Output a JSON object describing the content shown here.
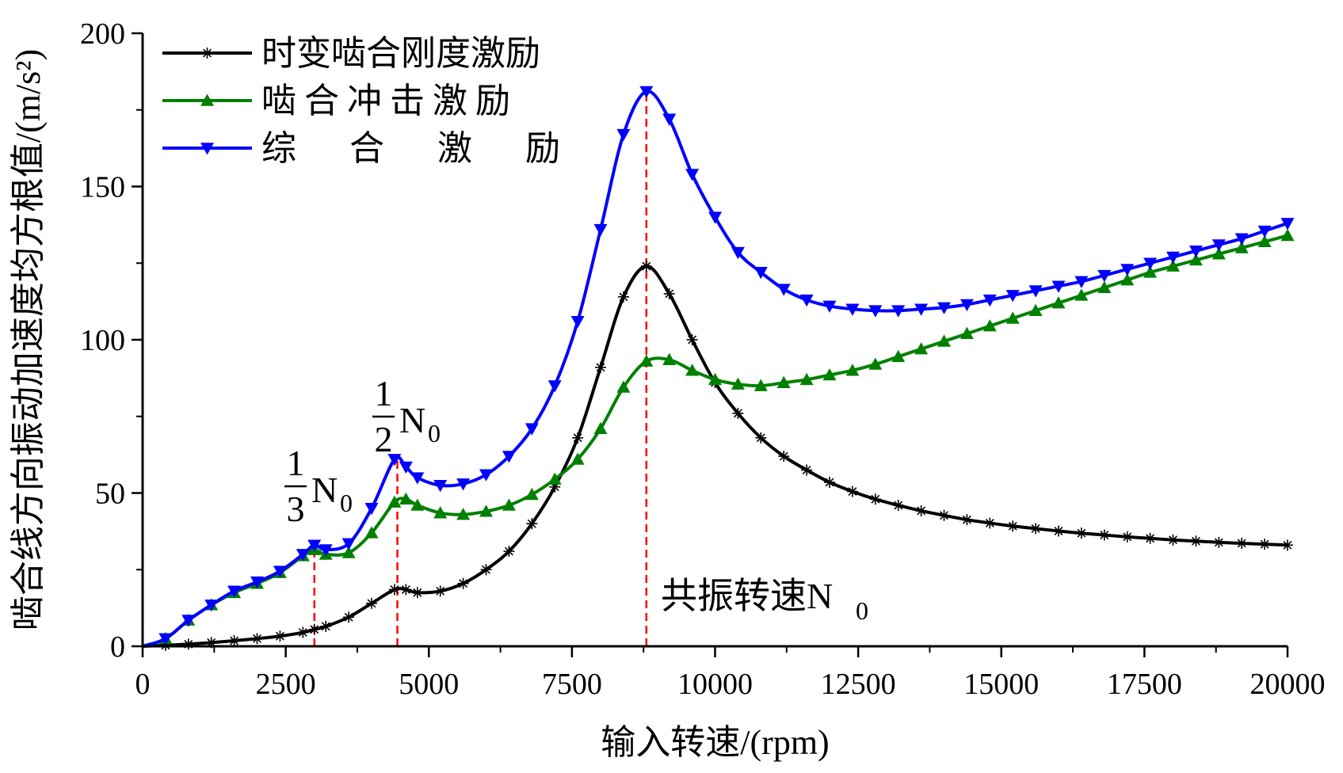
{
  "chart_data": {
    "type": "line",
    "xlabel": "输入转速/(rpm)",
    "ylabel": "啮合线方向振动加速度均方根值/(m/s²)",
    "xlim": [
      0,
      20000
    ],
    "ylim": [
      0,
      200
    ],
    "xticks": [
      0,
      2500,
      5000,
      7500,
      10000,
      12500,
      15000,
      17500,
      20000
    ],
    "yticks": [
      0,
      50,
      100,
      150,
      200
    ],
    "grid": false,
    "legend_position": "top-left",
    "series": [
      {
        "name": "时变啮合刚度激励",
        "color": "#000000",
        "marker": "asterisk",
        "x": [
          0,
          400,
          800,
          1200,
          1600,
          2000,
          2400,
          2800,
          3000,
          3200,
          3600,
          4000,
          4400,
          4600,
          4800,
          5200,
          5600,
          6000,
          6400,
          6800,
          7200,
          7600,
          8000,
          8400,
          8800,
          9200,
          9600,
          10000,
          10400,
          10800,
          11200,
          11600,
          12000,
          12400,
          12800,
          13200,
          13600,
          14000,
          14400,
          14800,
          15200,
          15600,
          16000,
          16400,
          16800,
          17200,
          17600,
          18000,
          18400,
          18800,
          19200,
          19600,
          20000
        ],
        "y": [
          0,
          0.3,
          0.7,
          1.2,
          1.8,
          2.5,
          3.3,
          4.5,
          5.5,
          6.5,
          9.5,
          14,
          18.5,
          18.5,
          17.5,
          18,
          20.5,
          25,
          31,
          40,
          52,
          68,
          91,
          114,
          124,
          115,
          100,
          86,
          76,
          68,
          62,
          57.5,
          53.5,
          50.5,
          48,
          46,
          44.2,
          42.7,
          41.3,
          40.2,
          39.2,
          38.4,
          37.6,
          36.9,
          36.3,
          35.7,
          35.2,
          34.7,
          34.3,
          33.9,
          33.6,
          33.3,
          33
        ]
      },
      {
        "name": "啮合冲击激励",
        "color": "#008000",
        "marker": "triangle-up",
        "x": [
          0,
          400,
          800,
          1200,
          1600,
          2000,
          2400,
          2800,
          3000,
          3200,
          3600,
          4000,
          4400,
          4600,
          4800,
          5200,
          5600,
          6000,
          6400,
          6800,
          7200,
          7600,
          8000,
          8400,
          8800,
          9200,
          9600,
          10000,
          10400,
          10800,
          11200,
          11600,
          12000,
          12400,
          12800,
          13200,
          13600,
          14000,
          14400,
          14800,
          15200,
          15600,
          16000,
          16400,
          16800,
          17200,
          17600,
          18000,
          18400,
          18800,
          19200,
          19600,
          20000
        ],
        "y": [
          0,
          2.5,
          8.5,
          13.5,
          17.5,
          20.5,
          24,
          29.5,
          31.5,
          30,
          30.5,
          37,
          47,
          48,
          46,
          43.5,
          43,
          44,
          46,
          49.5,
          54.5,
          61,
          71,
          84.5,
          93,
          93.5,
          90,
          87,
          85.5,
          85,
          86,
          87,
          88.5,
          90,
          92,
          94.5,
          97,
          99.5,
          102,
          104.5,
          107,
          109.5,
          112,
          114.5,
          117,
          119.5,
          122,
          124,
          126,
          128,
          130,
          132,
          134
        ]
      },
      {
        "name": "综 合 激 励",
        "color": "#0000ff",
        "marker": "triangle-down",
        "x": [
          0,
          400,
          800,
          1200,
          1600,
          2000,
          2400,
          2800,
          3000,
          3200,
          3600,
          4000,
          4400,
          4600,
          4800,
          5200,
          5600,
          6000,
          6400,
          6800,
          7200,
          7600,
          8000,
          8400,
          8800,
          9200,
          9600,
          10000,
          10400,
          10800,
          11200,
          11600,
          12000,
          12400,
          12800,
          13200,
          13600,
          14000,
          14400,
          14800,
          15200,
          15600,
          16000,
          16400,
          16800,
          17200,
          17600,
          18000,
          18400,
          18800,
          19200,
          19600,
          20000
        ],
        "y": [
          0,
          2.5,
          8.5,
          13.5,
          18,
          21,
          24.5,
          30,
          33,
          31.5,
          33.5,
          45,
          61,
          58.5,
          55,
          52.5,
          53,
          56,
          62,
          71,
          85,
          106,
          136,
          167,
          181,
          172,
          154,
          140,
          128.5,
          122,
          116.5,
          113,
          111,
          110,
          109.5,
          109.5,
          110,
          110.5,
          111.5,
          113,
          114.5,
          116,
          117.5,
          119,
          121,
          123,
          125,
          127,
          129,
          131,
          133,
          135.5,
          138
        ]
      }
    ],
    "annotations": [
      {
        "frac_num": "1",
        "frac_den": "3",
        "text": "N",
        "sub": "0",
        "x": 3000
      },
      {
        "frac_num": "1",
        "frac_den": "2",
        "text": "N",
        "sub": "0",
        "x": 4450
      },
      {
        "text": "共振转速N",
        "sub": "0",
        "x": 8800
      }
    ],
    "reference_lines": [
      {
        "x": 3000,
        "y_top": 33,
        "color": "#ff0000",
        "style": "dashed"
      },
      {
        "x": 4450,
        "y_top": 61.5,
        "color": "#ff0000",
        "style": "dashed"
      },
      {
        "x": 8800,
        "y_top": 182,
        "color": "#ff0000",
        "style": "dashed"
      }
    ]
  }
}
